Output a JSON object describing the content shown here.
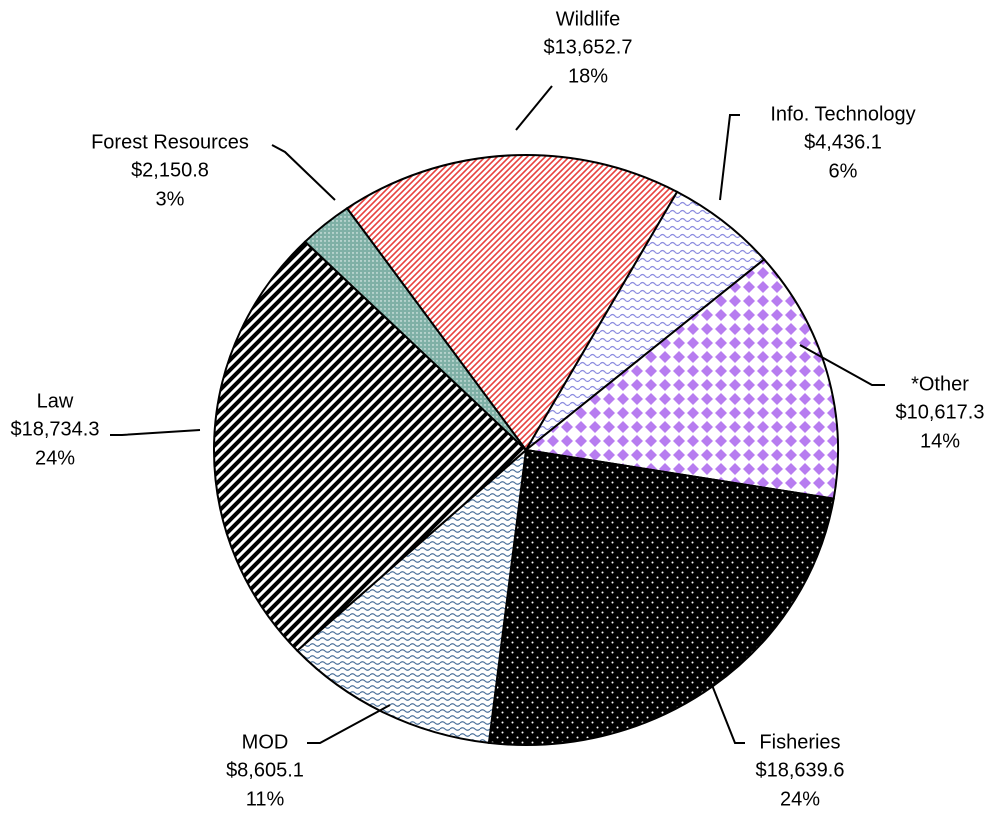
{
  "chart_data": {
    "type": "pie",
    "categories": [
      "Wildlife",
      "Info. Technology",
      "*Other",
      "Fisheries",
      "MOD",
      "Law",
      "Forest Resources"
    ],
    "values": [
      13652.7,
      4436.1,
      10617.3,
      18639.6,
      8605.1,
      18734.3,
      2150.8
    ],
    "value_labels": [
      "$13,652.7",
      "$4,436.1",
      "$10,617.3",
      "$18,639.6",
      "$8,605.1",
      "$18,734.3",
      "$2,150.8"
    ],
    "percent_labels": [
      "18%",
      "6%",
      "14%",
      "24%",
      "11%",
      "24%",
      "3%"
    ],
    "colors": [
      "#e8423f",
      "#8c8ce0",
      "#b77cf0",
      "#000000",
      "#4a6f9a",
      "#000000",
      "#7fb0a6"
    ]
  }
}
